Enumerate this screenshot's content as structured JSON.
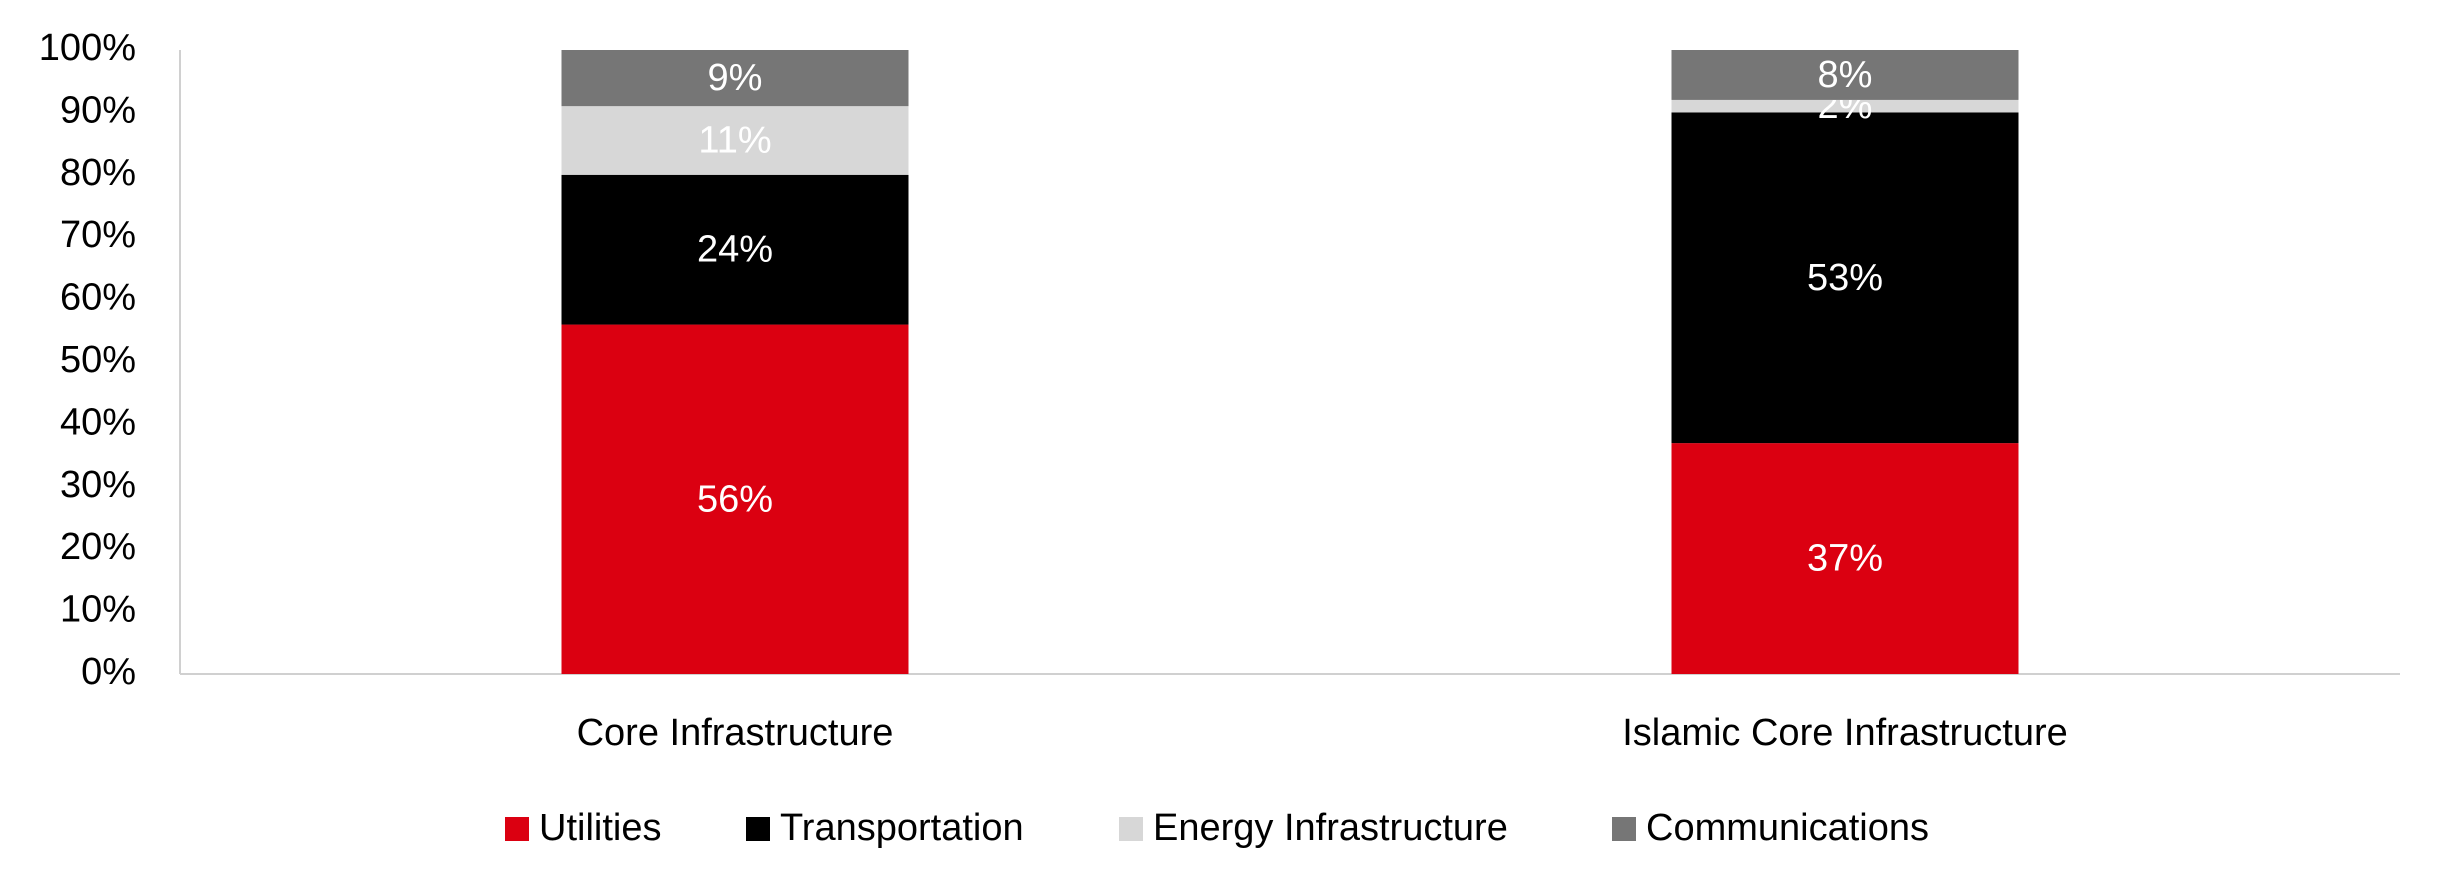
{
  "chart_data": {
    "type": "stacked_bar",
    "categories": [
      "Core Infrastructure",
      "Islamic Core Infrastructure"
    ],
    "series": [
      {
        "name": "Utilities",
        "color": "#db0011",
        "values": [
          56,
          37
        ],
        "value_labels": [
          "56%",
          "37%"
        ]
      },
      {
        "name": "Transportation",
        "color": "#000000",
        "values": [
          24,
          53
        ],
        "value_labels": [
          "24%",
          "53%"
        ]
      },
      {
        "name": "Energy Infrastructure",
        "color": "#d7d7d7",
        "values": [
          11,
          2
        ],
        "value_labels": [
          "11%",
          "2%"
        ]
      },
      {
        "name": "Communications",
        "color": "#767676",
        "values": [
          9,
          8
        ],
        "value_labels": [
          "9%",
          "8%"
        ]
      }
    ],
    "ylim": [
      0,
      100
    ],
    "yticks": [
      {
        "value": 0,
        "label": "0%"
      },
      {
        "value": 10,
        "label": "10%"
      },
      {
        "value": 20,
        "label": "20%"
      },
      {
        "value": 30,
        "label": "30%"
      },
      {
        "value": 40,
        "label": "40%"
      },
      {
        "value": 50,
        "label": "50%"
      },
      {
        "value": 60,
        "label": "60%"
      },
      {
        "value": 70,
        "label": "70%"
      },
      {
        "value": 80,
        "label": "80%"
      },
      {
        "value": 90,
        "label": "90%"
      },
      {
        "value": 100,
        "label": "100%"
      }
    ],
    "grid": false,
    "legend": "bottom"
  }
}
